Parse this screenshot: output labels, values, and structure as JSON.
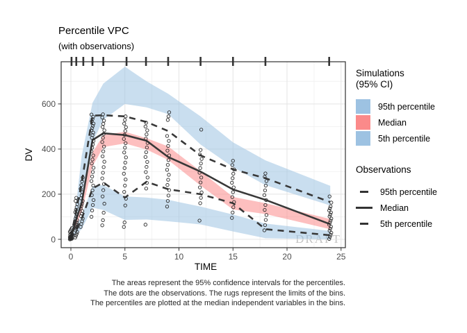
{
  "title": "Percentile VPC",
  "subtitle": "(with observations)",
  "watermark": "DRAFT",
  "caption": {
    "line1": "The areas represent the 95% confidence intervals for the percentiles.",
    "line2": "The dots are the observations. The rugs represent the limits of the bins.",
    "line3": "The percentiles are plotted at the median independent variables in the bins."
  },
  "legend": {
    "sim": {
      "title_line1": "Simulations",
      "title_line2": "(95% CI)",
      "items": [
        {
          "label": "95th percentile",
          "color_key": "sim_blue"
        },
        {
          "label": "Median",
          "color_key": "sim_red"
        },
        {
          "label": "5th percentile",
          "color_key": "sim_blue"
        }
      ]
    },
    "obs": {
      "title": "Observations",
      "items": [
        {
          "label": "95th percentile",
          "style": "dashed"
        },
        {
          "label": "Median",
          "style": "solid"
        },
        {
          "label": "5th percentile",
          "style": "dashed"
        }
      ]
    }
  },
  "colors": {
    "sim_blue": "#9dc2e2",
    "sim_red": "#fb8a8a",
    "band_opacity": 0.55,
    "obs_line": "#383838",
    "grid_major": "#e4e4e4",
    "grid_minor": "#f2f2f2",
    "axis_text": "#4d4d4d",
    "panel_border": "#2f2f2f",
    "point_stroke": "#2a2a2a",
    "watermark": "#c2c2c2"
  },
  "chart_data": {
    "type": "vpc (area bands + percentile lines + scatter)",
    "title": "Percentile VPC",
    "subtitle": "(with observations)",
    "xlabel": "TIME",
    "ylabel": "DV",
    "x_ticks": [
      0,
      5,
      10,
      15,
      20,
      25
    ],
    "x_minor": [
      2.5,
      7.5,
      12.5,
      17.5,
      22.5
    ],
    "y_ticks": [
      0,
      200,
      400,
      600
    ],
    "y_minor": [
      100,
      300,
      500,
      700
    ],
    "xlim": [
      -0.9,
      25.4
    ],
    "ylim": [
      -37,
      787
    ],
    "grid": true,
    "legend_position": "right",
    "bin_times": [
      0,
      0.5,
      1,
      2,
      3,
      5,
      7,
      9,
      12,
      15,
      18,
      24
    ],
    "sim_p95_ci": {
      "name": "Simulated 95th percentile 95% CI",
      "hi": [
        15,
        160,
        370,
        605,
        690,
        765,
        700,
        645,
        545,
        430,
        350,
        237
      ],
      "lo": [
        5,
        90,
        180,
        430,
        530,
        600,
        585,
        555,
        420,
        320,
        240,
        150
      ]
    },
    "sim_median_ci": {
      "name": "Simulated median 95% CI",
      "hi": [
        8,
        95,
        175,
        385,
        462,
        477,
        448,
        412,
        302,
        188,
        160,
        90
      ],
      "lo": [
        3,
        65,
        120,
        323,
        409,
        425,
        398,
        352,
        238,
        132,
        112,
        45
      ]
    },
    "sim_p5_ci": {
      "name": "Simulated 5th percentile 95% CI",
      "hi": [
        5,
        55,
        105,
        235,
        240,
        190,
        185,
        175,
        145,
        110,
        70,
        37
      ],
      "lo": [
        0,
        25,
        45,
        140,
        130,
        86,
        88,
        80,
        66,
        35,
        5,
        0
      ]
    },
    "obs_p95": [
      10,
      130,
      250,
      548,
      550,
      545,
      520,
      480,
      372,
      310,
      271,
      165
    ],
    "obs_median": [
      5,
      90,
      160,
      440,
      470,
      462,
      437,
      365,
      300,
      221,
      175,
      67
    ],
    "obs_p5": [
      2,
      45,
      90,
      225,
      252,
      185,
      255,
      222,
      200,
      160,
      45,
      18
    ],
    "rug_times": [
      0.06,
      0.5,
      1.15,
      2,
      3,
      5.15,
      6.95,
      9,
      12,
      15,
      18,
      23.9
    ],
    "points": [
      {
        "t": 0,
        "dv": [
          0,
          1,
          2,
          3,
          5,
          6,
          8,
          10,
          12,
          14,
          17,
          20,
          24,
          28,
          33,
          38,
          44,
          50
        ]
      },
      {
        "t": 0.5,
        "dv": [
          8,
          16,
          24,
          32,
          40,
          47,
          54,
          61,
          68,
          76,
          84,
          92,
          101,
          110,
          120,
          131,
          143,
          156,
          170,
          184
        ]
      },
      {
        "t": 1,
        "dv": [
          55,
          68,
          80,
          92,
          103,
          114,
          125,
          136,
          147,
          158,
          170,
          182,
          195,
          209,
          224,
          240,
          257,
          274
        ]
      },
      {
        "t": 2,
        "dv": [
          100,
          128,
          152,
          174,
          196,
          217,
          238,
          258,
          278,
          298,
          317,
          336,
          354,
          372,
          390,
          406,
          421,
          436,
          450,
          462,
          473,
          483,
          493,
          503,
          513,
          523,
          533,
          543,
          553
        ]
      },
      {
        "t": 3,
        "dv": [
          62,
          85,
          118,
          158,
          190,
          218,
          245,
          270,
          295,
          320,
          344,
          368,
          390,
          411,
          431,
          450,
          467,
          483,
          498,
          512,
          526,
          540,
          554
        ]
      },
      {
        "t": 5,
        "dv": [
          55,
          75,
          150,
          180,
          210,
          238,
          265,
          291,
          316,
          340,
          363,
          385,
          406,
          426,
          445,
          463,
          480,
          497,
          513,
          529,
          545
        ]
      },
      {
        "t": 7,
        "dv": [
          65,
          225,
          250,
          274,
          298,
          321,
          343,
          365,
          386,
          407,
          427,
          446,
          465,
          483,
          500,
          517
        ]
      },
      {
        "t": 9,
        "dv": [
          145,
          170,
          194,
          218,
          241,
          264,
          286,
          308,
          330,
          351,
          372,
          393,
          414,
          436,
          458,
          529,
          545,
          563
        ]
      },
      {
        "t": 12,
        "dv": [
          83,
          160,
          184,
          208,
          230,
          252,
          274,
          295,
          316,
          336,
          356,
          376,
          396,
          486
        ]
      },
      {
        "t": 15,
        "dv": [
          95,
          119,
          142,
          165,
          187,
          209,
          230,
          251,
          271,
          291,
          310,
          329,
          348
        ]
      },
      {
        "t": 18,
        "dv": [
          40,
          63,
          86,
          108,
          130,
          152,
          174,
          196,
          217,
          238,
          258,
          277,
          292
        ]
      },
      {
        "t": 24,
        "dv": [
          2,
          11,
          20,
          29,
          38,
          47,
          56,
          65,
          74,
          83,
          92,
          101,
          110,
          119,
          128,
          137,
          146,
          163,
          190
        ]
      }
    ]
  }
}
